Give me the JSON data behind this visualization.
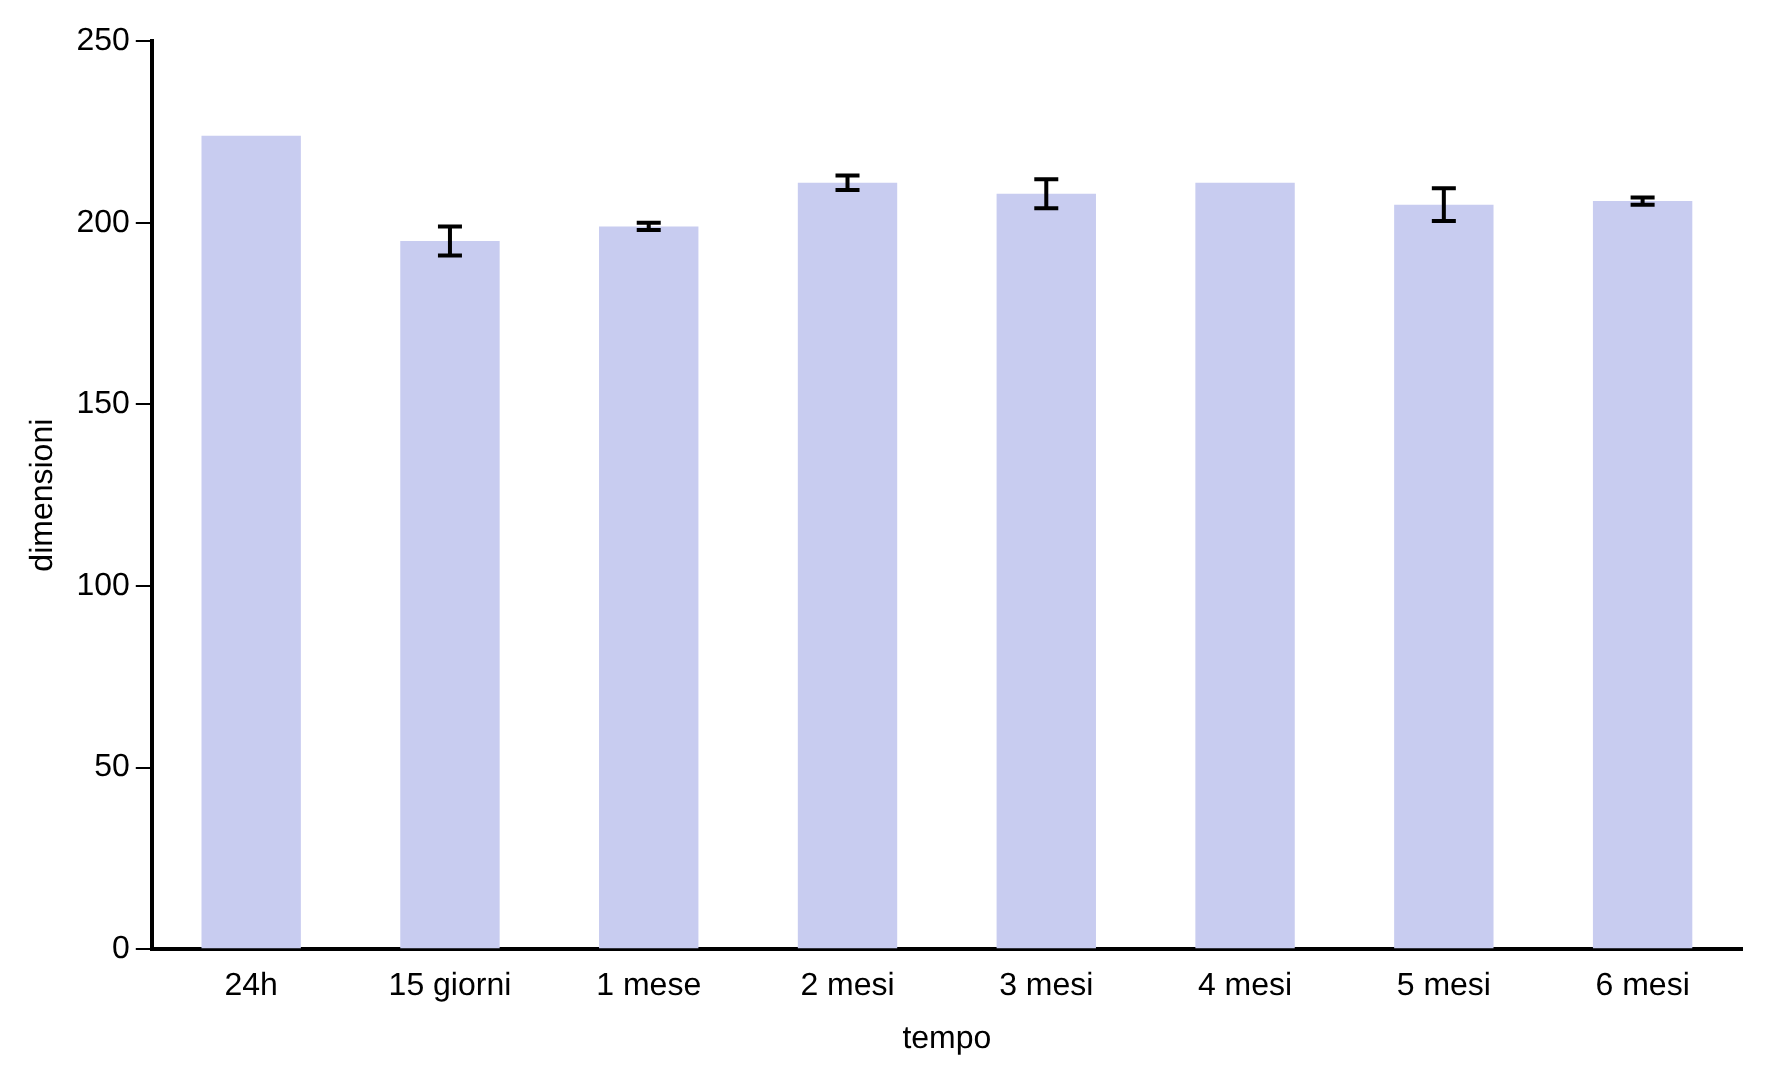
{
  "chart_data": {
    "type": "bar",
    "xlabel": "tempo",
    "ylabel": "dimensioni",
    "categories": [
      "24h",
      "15 giorni",
      "1 mese",
      "2 mesi",
      "3 mesi",
      "4 mesi",
      "5 mesi",
      "6 mesi"
    ],
    "values": [
      224,
      195,
      199,
      211,
      208,
      211,
      205,
      206
    ],
    "errors": [
      null,
      4,
      1,
      2,
      4,
      null,
      4.5,
      1
    ],
    "color": "#c8ccf0",
    "ylim": [
      0,
      250
    ],
    "yticks": [
      0,
      50,
      100,
      150,
      200,
      250
    ],
    "grid": false,
    "legend": false
  }
}
